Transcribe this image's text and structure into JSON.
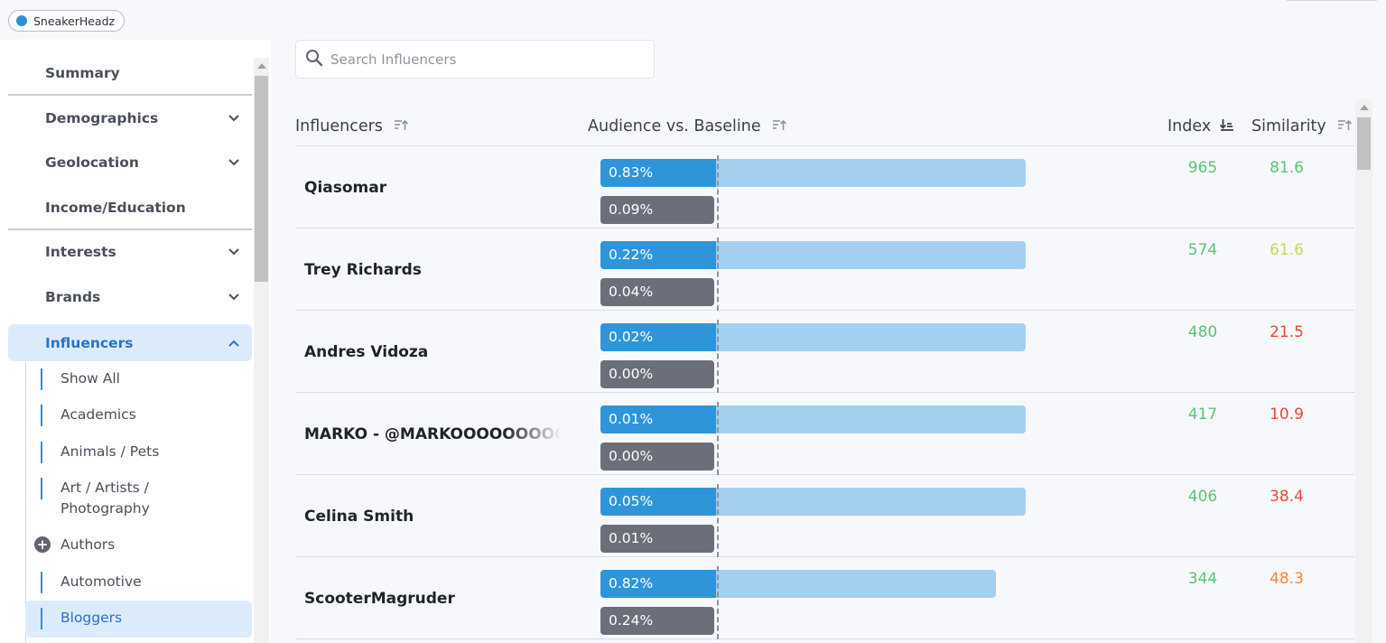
{
  "brand": {
    "name": "SneakerHeadz",
    "dot_color": "#2f8fdb"
  },
  "sidebar": {
    "items": [
      {
        "label": "Summary",
        "chevron": ""
      },
      {
        "label": "Demographics",
        "chevron": "down"
      },
      {
        "label": "Geolocation",
        "chevron": "down"
      },
      {
        "label": "Income/Education",
        "chevron": ""
      },
      {
        "label": "Interests",
        "chevron": "down"
      },
      {
        "label": "Brands",
        "chevron": "down"
      },
      {
        "label": "Influencers",
        "chevron": "up",
        "active": true
      }
    ],
    "sub_items": [
      {
        "label": "Show All"
      },
      {
        "label": "Academics"
      },
      {
        "label": "Animals / Pets"
      },
      {
        "label": "Art / Artists / Photography"
      },
      {
        "label": "Authors",
        "icon": "plus-circle-icon"
      },
      {
        "label": "Automotive"
      },
      {
        "label": "Bloggers",
        "active": true
      }
    ]
  },
  "search": {
    "placeholder": "Search Influencers",
    "value": ""
  },
  "table": {
    "headers": {
      "influencers": "Influencers",
      "audience": "Audience vs. Baseline",
      "index": "Index",
      "similarity": "Similarity"
    },
    "rows": [
      {
        "name": "Qiasomar",
        "audience": "0.83%",
        "baseline": "0.09%",
        "index": "965",
        "similarity": "81.6",
        "sim_color": "#5ec27a",
        "bar_fraction": 1.0
      },
      {
        "name": "Trey Richards",
        "audience": "0.22%",
        "baseline": "0.04%",
        "index": "574",
        "similarity": "61.6",
        "sim_color": "#c9d45c",
        "bar_fraction": 1.0
      },
      {
        "name": "Andres Vidoza",
        "audience": "0.02%",
        "baseline": "0.00%",
        "index": "480",
        "similarity": "21.5",
        "sim_color": "#e5483e",
        "bar_fraction": 1.0
      },
      {
        "name": "MARKO - @MARKOOOOOOOOOO",
        "audience": "0.01%",
        "baseline": "0.00%",
        "index": "417",
        "similarity": "10.9",
        "sim_color": "#e5483e",
        "bar_fraction": 1.0
      },
      {
        "name": "Celina Smith",
        "audience": "0.05%",
        "baseline": "0.01%",
        "index": "406",
        "similarity": "38.4",
        "sim_color": "#e5483e",
        "bar_fraction": 1.0
      },
      {
        "name": "ScooterMagruder",
        "audience": "0.82%",
        "baseline": "0.24%",
        "index": "344",
        "similarity": "48.3",
        "sim_color": "#ef8a3a",
        "bar_fraction": 0.93
      }
    ]
  },
  "colors": {
    "accent": "#2f95db",
    "index_color": "#5ec27a",
    "active_bg": "#dcebfc",
    "active_text": "#2e6fd0"
  }
}
